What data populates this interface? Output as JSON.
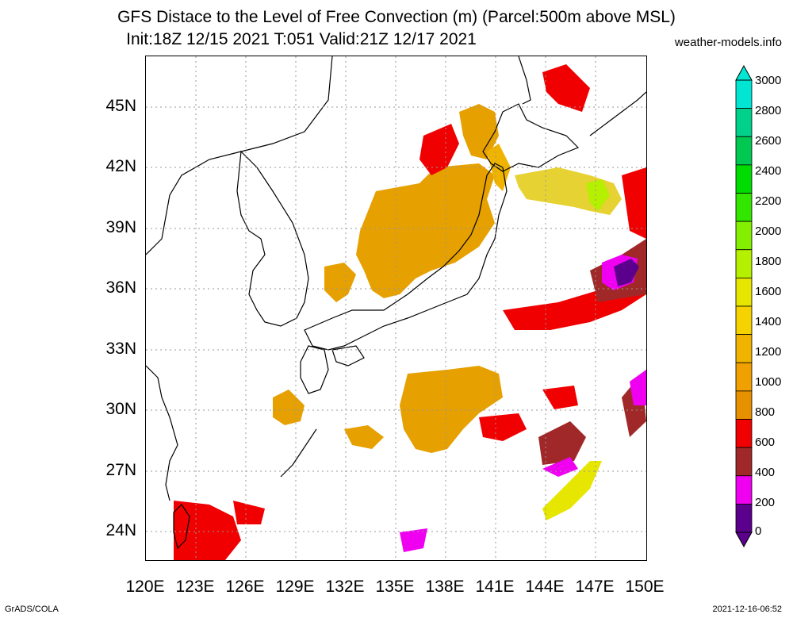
{
  "title": {
    "line1": "GFS Distace to the Level of Free Convection (m) (Parcel:500m above MSL)",
    "line2": "Init:18Z 12/15 2021 T:051 Valid:21Z 12/17 2021"
  },
  "credit": "weather-models.info",
  "map": {
    "lat_labels": [
      "45N",
      "42N",
      "39N",
      "36N",
      "33N",
      "30N",
      "27N",
      "24N"
    ],
    "lon_labels": [
      "120E",
      "123E",
      "126E",
      "129E",
      "132E",
      "135E",
      "138E",
      "141E",
      "144E",
      "147E",
      "150E"
    ],
    "grid": "dotted"
  },
  "colorbar": {
    "labels": [
      "3000",
      "2800",
      "2600",
      "2400",
      "2200",
      "2000",
      "1800",
      "1600",
      "1400",
      "1200",
      "1000",
      "800",
      "600",
      "400",
      "200",
      "0"
    ],
    "colors": [
      "#00e6d2",
      "#00d28c",
      "#00c850",
      "#00dc00",
      "#32e600",
      "#82f000",
      "#b4f000",
      "#e6e600",
      "#f5d200",
      "#f0b400",
      "#f0a000",
      "#e69100",
      "#f00000",
      "#a02828",
      "#f000f0",
      "#5a008c"
    ]
  },
  "footer": {
    "left": "GrADS/COLA",
    "right": "2021-12-16-06:52"
  }
}
